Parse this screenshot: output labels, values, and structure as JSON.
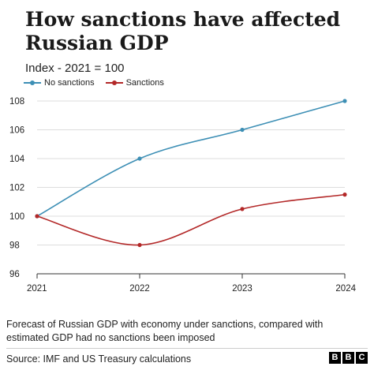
{
  "title": "How sanctions have affected Russian GDP",
  "subtitle": "Index - 2021 = 100",
  "caption": "Forecast of Russian GDP with economy under sanctions, compared with estimated GDP had no sanctions been imposed",
  "source": "Source: IMF and US Treasury calculations",
  "logo": [
    "B",
    "B",
    "C"
  ],
  "chart_data": {
    "type": "line",
    "x": [
      "2021",
      "2022",
      "2023",
      "2024"
    ],
    "series": [
      {
        "name": "No sanctions",
        "values": [
          100,
          104,
          106,
          108
        ],
        "color": "#3d8fb5"
      },
      {
        "name": "Sanctions",
        "values": [
          100,
          98,
          100.5,
          101.5
        ],
        "color": "#b32828"
      }
    ],
    "ylim": [
      96,
      108
    ],
    "yticks": [
      96,
      98,
      100,
      102,
      104,
      106,
      108
    ],
    "grid": "horizontal",
    "legend": "top-left"
  }
}
